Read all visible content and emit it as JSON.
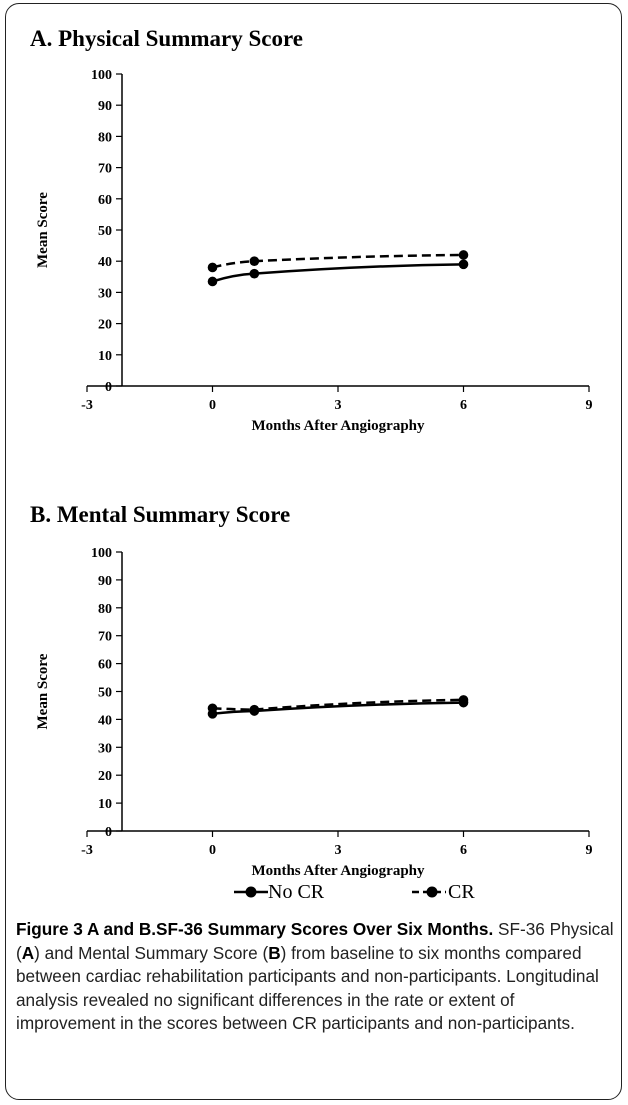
{
  "chart_data": [
    {
      "type": "line",
      "title": "A. Physical Summary Score",
      "xlabel": "Months After Angiography",
      "ylabel": "Mean Score",
      "xlim": [
        -3,
        9
      ],
      "ylim": [
        0,
        100
      ],
      "x_ticks": [
        -3,
        0,
        3,
        6,
        9
      ],
      "y_ticks": [
        0,
        10,
        20,
        30,
        40,
        50,
        60,
        70,
        80,
        90,
        100
      ],
      "x": [
        0,
        1,
        6
      ],
      "series": [
        {
          "name": "No CR",
          "values": [
            33.5,
            36,
            39
          ],
          "line_style": "solid"
        },
        {
          "name": "CR",
          "values": [
            38,
            40,
            42
          ],
          "line_style": "dashed"
        }
      ],
      "grid": false
    },
    {
      "type": "line",
      "title": "B. Mental Summary Score",
      "xlabel": "Months After Angiography",
      "ylabel": "Mean Score",
      "xlim": [
        -3,
        9
      ],
      "ylim": [
        0,
        100
      ],
      "x_ticks": [
        -3,
        0,
        3,
        6,
        9
      ],
      "y_ticks": [
        0,
        10,
        20,
        30,
        40,
        50,
        60,
        70,
        80,
        90,
        100
      ],
      "x": [
        0,
        1,
        6
      ],
      "series": [
        {
          "name": "No CR",
          "values": [
            42,
            43,
            46
          ],
          "line_style": "solid"
        },
        {
          "name": "CR",
          "values": [
            44,
            43.5,
            47
          ],
          "line_style": "dashed"
        }
      ],
      "grid": false
    }
  ],
  "legend": {
    "items": [
      {
        "label": "No CR",
        "line_style": "solid"
      },
      {
        "label": "CR",
        "line_style": "dashed"
      }
    ],
    "placement": "bottom"
  },
  "caption": {
    "label": "Figure 3 A and B.SF-36 Summary Scores Over Six Months.",
    "part1": " SF-36 Physical (",
    "a": "A",
    "part2": ") and Mental Summary Score (",
    "b": "B",
    "part3": ") from baseline to six months compared between cardiac rehabilitation participants and non-participants. Longitudinal analysis revealed no significant differences in the rate or extent of improvement in the scores between CR participants and non-participants."
  },
  "colors": {
    "line": "#000000",
    "border": "#222222"
  }
}
